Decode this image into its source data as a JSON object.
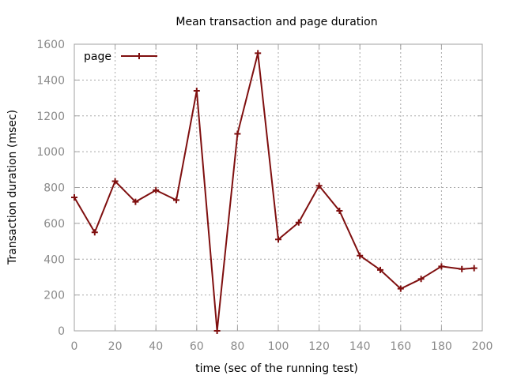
{
  "chart_data": {
    "type": "line",
    "title": "Mean transaction and page duration",
    "xlabel": "time (sec of the running test)",
    "ylabel": "Transaction duration (msec)",
    "xlim": [
      0,
      200
    ],
    "ylim": [
      0,
      1600
    ],
    "xticks": [
      0,
      20,
      40,
      60,
      80,
      100,
      120,
      140,
      160,
      180,
      200
    ],
    "yticks": [
      0,
      200,
      400,
      600,
      800,
      1000,
      1200,
      1400,
      1600
    ],
    "grid": true,
    "legend_position": "top-left",
    "series": [
      {
        "name": "page",
        "color": "#7f0f0f",
        "marker": "plus",
        "x": [
          0,
          10,
          20,
          30,
          40,
          50,
          60,
          70,
          80,
          90,
          100,
          110,
          120,
          130,
          140,
          150,
          160,
          170,
          180,
          190,
          196
        ],
        "y": [
          745,
          550,
          835,
          720,
          785,
          730,
          1340,
          0,
          1100,
          1550,
          510,
          605,
          810,
          670,
          420,
          340,
          235,
          290,
          360,
          345,
          350
        ]
      }
    ]
  }
}
